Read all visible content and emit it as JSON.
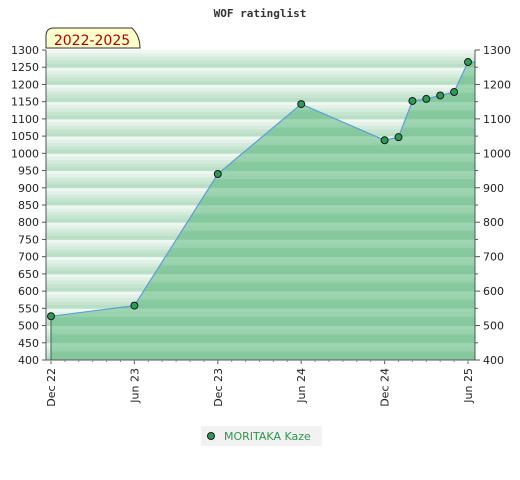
{
  "chart_data": {
    "type": "area",
    "title": "WOF ratinglist",
    "period_label": "2022-2025",
    "xlabel": "",
    "ylabel": "",
    "x_ticks": [
      "Dec 22",
      "Jun 23",
      "Dec 23",
      "Jun 24",
      "Dec 24",
      "Jun 25"
    ],
    "ylim": [
      400,
      1300
    ],
    "y_ticks": [
      400,
      450,
      500,
      550,
      600,
      650,
      700,
      750,
      800,
      850,
      900,
      950,
      1000,
      1050,
      1100,
      1150,
      1200,
      1250,
      1300
    ],
    "y_ticks_right": [
      400,
      500,
      600,
      700,
      800,
      900,
      1000,
      1100,
      1200,
      1300
    ],
    "legend_position": "bottom-center",
    "series": [
      {
        "name": "MORITAKA Kaze",
        "x": [
          "2022-12",
          "2023-06",
          "2023-12",
          "2024-06",
          "2024-12",
          "2025-01",
          "2025-02",
          "2025-03",
          "2025-04",
          "2025-05",
          "2025-06"
        ],
        "values": [
          527,
          558,
          940,
          1143,
          1038,
          1047,
          1152,
          1158,
          1168,
          1178,
          1265
        ]
      }
    ],
    "colors": {
      "line": "#5aa0d8",
      "marker": "#2e9a55",
      "fill": "#7fc89a",
      "band_light": "#eef7f1",
      "band_dark": "#77c092"
    }
  }
}
